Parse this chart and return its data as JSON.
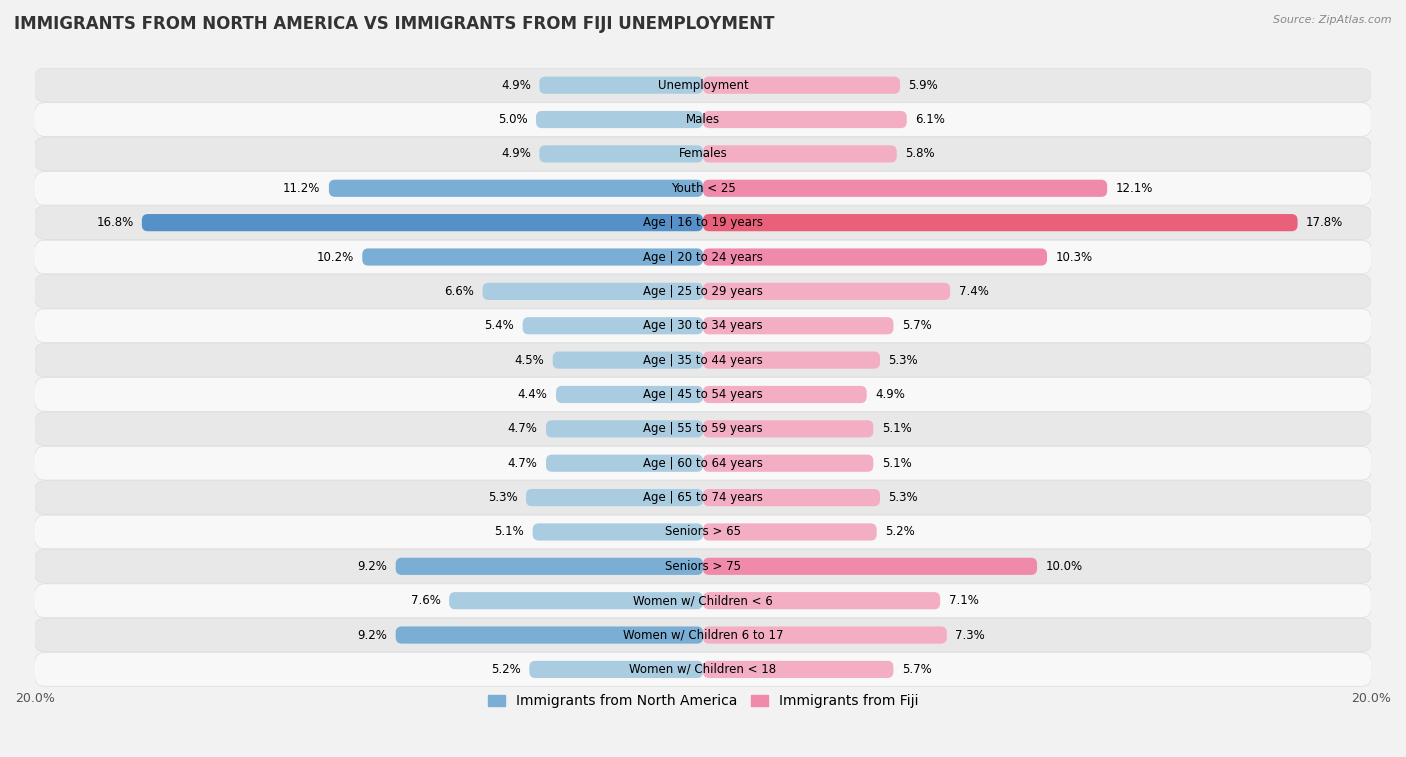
{
  "title": "IMMIGRANTS FROM NORTH AMERICA VS IMMIGRANTS FROM FIJI UNEMPLOYMENT",
  "source": "Source: ZipAtlas.com",
  "categories": [
    "Unemployment",
    "Males",
    "Females",
    "Youth < 25",
    "Age | 16 to 19 years",
    "Age | 20 to 24 years",
    "Age | 25 to 29 years",
    "Age | 30 to 34 years",
    "Age | 35 to 44 years",
    "Age | 45 to 54 years",
    "Age | 55 to 59 years",
    "Age | 60 to 64 years",
    "Age | 65 to 74 years",
    "Seniors > 65",
    "Seniors > 75",
    "Women w/ Children < 6",
    "Women w/ Children 6 to 17",
    "Women w/ Children < 18"
  ],
  "north_america": [
    4.9,
    5.0,
    4.9,
    11.2,
    16.8,
    10.2,
    6.6,
    5.4,
    4.5,
    4.4,
    4.7,
    4.7,
    5.3,
    5.1,
    9.2,
    7.6,
    9.2,
    5.2
  ],
  "fiji": [
    5.9,
    6.1,
    5.8,
    12.1,
    17.8,
    10.3,
    7.4,
    5.7,
    5.3,
    4.9,
    5.1,
    5.1,
    5.3,
    5.2,
    10.0,
    7.1,
    7.3,
    5.7
  ],
  "north_america_color": "#7aaed4",
  "fiji_color": "#f08aaa",
  "north_america_light": "#b8d4ea",
  "fiji_light": "#f8c0d0",
  "background_color": "#f2f2f2",
  "row_color_odd": "#e8e8e8",
  "row_color_even": "#f8f8f8",
  "max_val": 20.0,
  "bar_height": 0.5,
  "title_fontsize": 12,
  "label_fontsize": 8.5,
  "value_fontsize": 8.5,
  "legend_fontsize": 10,
  "xlabel_20_left": "20.0%",
  "xlabel_20_right": "20.0%"
}
